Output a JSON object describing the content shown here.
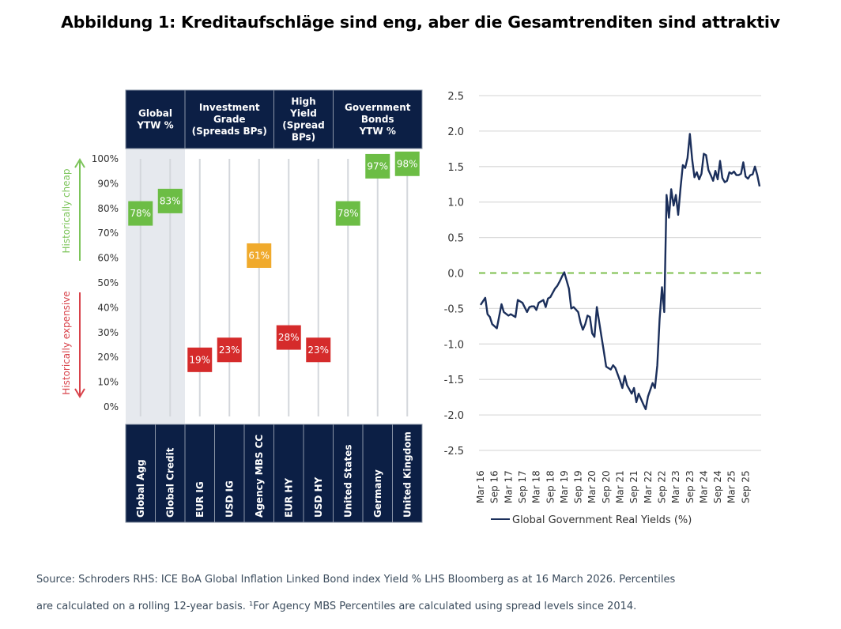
{
  "title": "Abbildung 1: Kreditaufschläge sind eng, aber die Gesamtrenditen sind attraktiv",
  "footnote": {
    "line1": "Source: Schroders RHS: ICE BoA Global Inflation Linked Bond index Yield % LHS Bloomberg as at 16 March 2026. Percentiles",
    "line2": "are calculated on a rolling 12-year basis. ¹For Agency MBS Percentiles are calculated using spread levels since 2014."
  },
  "colors": {
    "navy": "#0c1f45",
    "green": "#6cbd45",
    "red": "#d52b2b",
    "amber": "#f0aa2c",
    "shade": "#e6e9ee",
    "grid": "#dcdcdc",
    "line": "#1b2f5b",
    "zero_line": "#7cbf4d",
    "cheap_label": "#7cc45a",
    "expensive_label": "#d8424a"
  },
  "chart_data": [
    {
      "type": "scatter",
      "title": "Percentile ranking",
      "ylabel_top": "Historically cheap",
      "ylabel_bottom": "Historically expensive",
      "yticks": [
        "0%",
        "10%",
        "20%",
        "30%",
        "40%",
        "50%",
        "60%",
        "70%",
        "80%",
        "90%",
        "100%"
      ],
      "ylim": [
        0,
        100
      ],
      "groups": [
        {
          "label": "Global YTW %",
          "span": 2,
          "shaded": true
        },
        {
          "label": "Investment Grade (Spreads BPs)",
          "span": 3,
          "shaded": false
        },
        {
          "label": "High Yield (Spread BPs)",
          "span": 2,
          "shaded": false
        },
        {
          "label": "Government Bonds YTW %",
          "span": 3,
          "shaded": false
        }
      ],
      "group_header_lines": [
        [
          "Global",
          "YTW %"
        ],
        [
          "Investment",
          "Grade",
          "(Spreads BPs)"
        ],
        [
          "High",
          "Yield",
          "(Spread",
          "BPs)"
        ],
        [
          "Government",
          "Bonds",
          "YTW %"
        ]
      ],
      "categories": [
        "Global Agg",
        "Global Credit",
        "EUR IG",
        "USD IG",
        "Agency MBS CC",
        "EUR HY",
        "USD HY",
        "United States",
        "Germany",
        "United Kingdom"
      ],
      "values": [
        78,
        83,
        19,
        23,
        61,
        28,
        23,
        78,
        97,
        98
      ],
      "value_labels": [
        "78%",
        "83%",
        "19%",
        "23%",
        "61%",
        "28%",
        "23%",
        "78%",
        "97%",
        "98%"
      ],
      "status": [
        "cheap",
        "cheap",
        "expensive",
        "expensive",
        "neutral",
        "expensive",
        "expensive",
        "cheap",
        "cheap",
        "cheap"
      ]
    },
    {
      "type": "line",
      "title": "",
      "legend": "Global Government Real Yields (%)",
      "legend_position": "bottom",
      "ylim": [
        -2.5,
        2.5
      ],
      "yticks": [
        "2.5",
        "2.0",
        "1.5",
        "1.0",
        "0.5",
        "0.0",
        "-0.5",
        "-1.0",
        "-1.5",
        "-2.0",
        "-2.5"
      ],
      "ytick_values": [
        2.5,
        2.0,
        1.5,
        1.0,
        0.5,
        0.0,
        -0.5,
        -1.0,
        -1.5,
        -2.0,
        -2.5
      ],
      "xticks": [
        "Mar 16",
        "Sep 16",
        "Mar 17",
        "Sep 17",
        "Mar 18",
        "Sep 18",
        "Mar 19",
        "Sep 19",
        "Mar 20",
        "Sep 20",
        "Mar 21",
        "Sep 21",
        "Mar 22",
        "Sep 22",
        "Mar 23",
        "Sep 23",
        "Mar 24",
        "Sep 24",
        "Mar 25",
        "Sep 25"
      ],
      "xlim_months": [
        0,
        120
      ],
      "reference_line": {
        "y": 0.0,
        "style": "dashed"
      },
      "series": [
        {
          "name": "Global Government Real Yields (%)",
          "x_months": [
            0,
            2,
            3,
            4,
            5,
            7,
            9,
            10,
            12,
            13,
            15,
            16,
            18,
            20,
            21,
            22,
            23,
            24,
            25,
            27,
            28,
            29,
            30,
            32,
            33,
            34,
            35,
            36,
            38,
            39,
            40,
            42,
            43,
            44,
            45,
            46,
            47,
            48,
            49,
            50,
            52,
            53,
            54,
            56,
            57,
            58,
            60,
            61,
            62,
            63,
            64,
            65,
            66,
            67,
            68,
            70,
            71,
            72,
            74,
            75,
            76,
            77,
            78,
            79,
            80,
            81,
            82,
            83,
            84,
            85,
            86,
            87,
            88,
            89,
            90,
            91,
            92,
            93,
            94,
            95,
            96,
            97,
            98,
            99,
            100,
            101,
            102,
            103,
            104,
            105,
            106,
            107,
            108,
            109,
            110,
            111,
            112,
            113,
            114,
            115,
            116,
            117,
            118,
            119,
            120
          ],
          "values": [
            -0.45,
            -0.35,
            -0.58,
            -0.62,
            -0.72,
            -0.78,
            -0.44,
            -0.55,
            -0.6,
            -0.58,
            -0.62,
            -0.38,
            -0.42,
            -0.55,
            -0.48,
            -0.47,
            -0.47,
            -0.52,
            -0.42,
            -0.38,
            -0.48,
            -0.36,
            -0.34,
            -0.22,
            -0.18,
            -0.12,
            -0.05,
            0.01,
            -0.22,
            -0.5,
            -0.48,
            -0.55,
            -0.7,
            -0.8,
            -0.72,
            -0.6,
            -0.62,
            -0.85,
            -0.9,
            -0.48,
            -0.9,
            -1.1,
            -1.32,
            -1.36,
            -1.3,
            -1.34,
            -1.52,
            -1.62,
            -1.45,
            -1.58,
            -1.64,
            -1.7,
            -1.62,
            -1.82,
            -1.7,
            -1.85,
            -1.92,
            -1.74,
            -1.55,
            -1.62,
            -1.3,
            -0.65,
            -0.2,
            -0.55,
            1.1,
            0.78,
            1.18,
            0.95,
            1.1,
            0.82,
            1.2,
            1.52,
            1.48,
            1.62,
            1.96,
            1.6,
            1.35,
            1.42,
            1.32,
            1.4,
            1.68,
            1.66,
            1.45,
            1.38,
            1.3,
            1.44,
            1.32,
            1.58,
            1.34,
            1.28,
            1.3,
            1.42,
            1.4,
            1.43,
            1.38,
            1.38,
            1.4,
            1.56,
            1.36,
            1.33,
            1.38,
            1.39,
            1.5,
            1.38,
            1.22
          ]
        }
      ]
    }
  ]
}
